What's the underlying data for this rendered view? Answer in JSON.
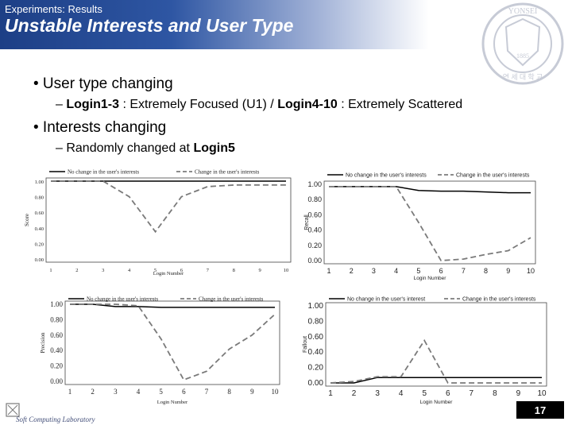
{
  "header": {
    "section": "Experiments: Results",
    "title": "Unstable Interests and User Type"
  },
  "bullets": {
    "b1": "• User type changing",
    "s1_dash": "– ",
    "s1_a": "Login1-3",
    "s1_b": " : Extremely Focused (U1) / ",
    "s1_c": "Login4-10",
    "s1_d": " : Extremely Scattered",
    "b2": "• Interests changing",
    "s2_a": "– Randomly changed at ",
    "s2_b": "Login5"
  },
  "footer": {
    "logo_text": "Soft Computing Laboratory",
    "page_number": "17"
  },
  "seal": {
    "top_text": "YONSEI",
    "year": "1885",
    "korean": "연 세 대 학 교"
  },
  "chart_data": [
    {
      "type": "line",
      "legend": [
        "No change in the user's interests",
        "Change in the user's interests"
      ],
      "ylabel": "Score",
      "xlabel": "Login Number",
      "ylim": [
        0,
        1
      ],
      "yticks": [
        "0.00",
        "0.20",
        "0.40",
        "0.60",
        "0.80",
        "1.00"
      ],
      "x": [
        1,
        2,
        3,
        4,
        5,
        6,
        7,
        8,
        9,
        10
      ],
      "xticks": [
        "1",
        "2",
        "3",
        "4",
        "5",
        "6",
        "7",
        "8",
        "9",
        "10"
      ],
      "series": [
        {
          "name": "No change in the user's interests",
          "values": [
            1.0,
            1.0,
            1.0,
            1.0,
            1.0,
            1.0,
            1.0,
            1.0,
            1.0,
            1.0
          ]
        },
        {
          "name": "Change in the user's interests",
          "values": [
            1.0,
            1.0,
            1.0,
            0.8,
            0.35,
            0.8,
            0.93,
            0.95,
            0.95,
            0.95
          ]
        }
      ]
    },
    {
      "type": "line",
      "legend": [
        "No change in the user's interests",
        "Change in the user's interests"
      ],
      "ylabel": "Recall",
      "xlabel": "Login Number",
      "ylim": [
        0,
        1
      ],
      "yticks": [
        "0.00",
        "0.20",
        "0.40",
        "0.60",
        "0.80",
        "1.00"
      ],
      "x": [
        1,
        2,
        3,
        4,
        5,
        6,
        7,
        8,
        9,
        10
      ],
      "xticks": [
        "1",
        "2",
        "3",
        "4",
        "5",
        "6",
        "7",
        "8",
        "9",
        "10"
      ],
      "series": [
        {
          "name": "No change in the user's interests",
          "values": [
            0.97,
            0.97,
            0.97,
            0.97,
            0.92,
            0.91,
            0.91,
            0.9,
            0.89,
            0.89
          ]
        },
        {
          "name": "Change in the user's interests",
          "values": [
            0.97,
            0.97,
            0.97,
            0.97,
            0.5,
            0.0,
            0.02,
            0.08,
            0.13,
            0.3
          ]
        }
      ]
    },
    {
      "type": "line",
      "legend": [
        "No change in the user's interests",
        "Change in the user's interests"
      ],
      "ylabel": "Precision",
      "xlabel": "Login Number",
      "ylim": [
        0,
        1
      ],
      "yticks": [
        "0.00",
        "0.20",
        "0.40",
        "0.60",
        "0.80",
        "1.00"
      ],
      "x": [
        1,
        2,
        3,
        4,
        5,
        6,
        7,
        8,
        9,
        10
      ],
      "xticks": [
        "1",
        "2",
        "3",
        "4",
        "5",
        "6",
        "7",
        "8",
        "9",
        "10"
      ],
      "series": [
        {
          "name": "No change in the user's interests",
          "values": [
            1.0,
            1.0,
            0.97,
            0.97,
            0.96,
            0.96,
            0.96,
            0.96,
            0.96,
            0.96
          ]
        },
        {
          "name": "Change in the user's interests",
          "values": [
            1.0,
            1.0,
            1.0,
            0.98,
            0.55,
            0.02,
            0.13,
            0.42,
            0.6,
            0.87
          ]
        }
      ]
    },
    {
      "type": "line",
      "legend": [
        "No change in the user's interest",
        "Change in the user's interests"
      ],
      "ylabel": "Fallout",
      "xlabel": "Login Number",
      "ylim": [
        0,
        1
      ],
      "yticks": [
        "0.00",
        "0.20",
        "0.40",
        "0.60",
        "0.80",
        "1.00"
      ],
      "x": [
        1,
        2,
        3,
        4,
        5,
        6,
        7,
        8,
        9,
        10
      ],
      "xticks": [
        "1",
        "2",
        "3",
        "4",
        "5",
        "6",
        "7",
        "8",
        "9",
        "10"
      ],
      "series": [
        {
          "name": "No change in the user's interest",
          "values": [
            0.0,
            0.0,
            0.07,
            0.07,
            0.07,
            0.07,
            0.07,
            0.07,
            0.07,
            0.07
          ]
        },
        {
          "name": "Change in the user's interests",
          "values": [
            0.0,
            0.02,
            0.08,
            0.08,
            0.55,
            0.0,
            0.0,
            0.0,
            0.0,
            0.0
          ]
        }
      ]
    }
  ]
}
